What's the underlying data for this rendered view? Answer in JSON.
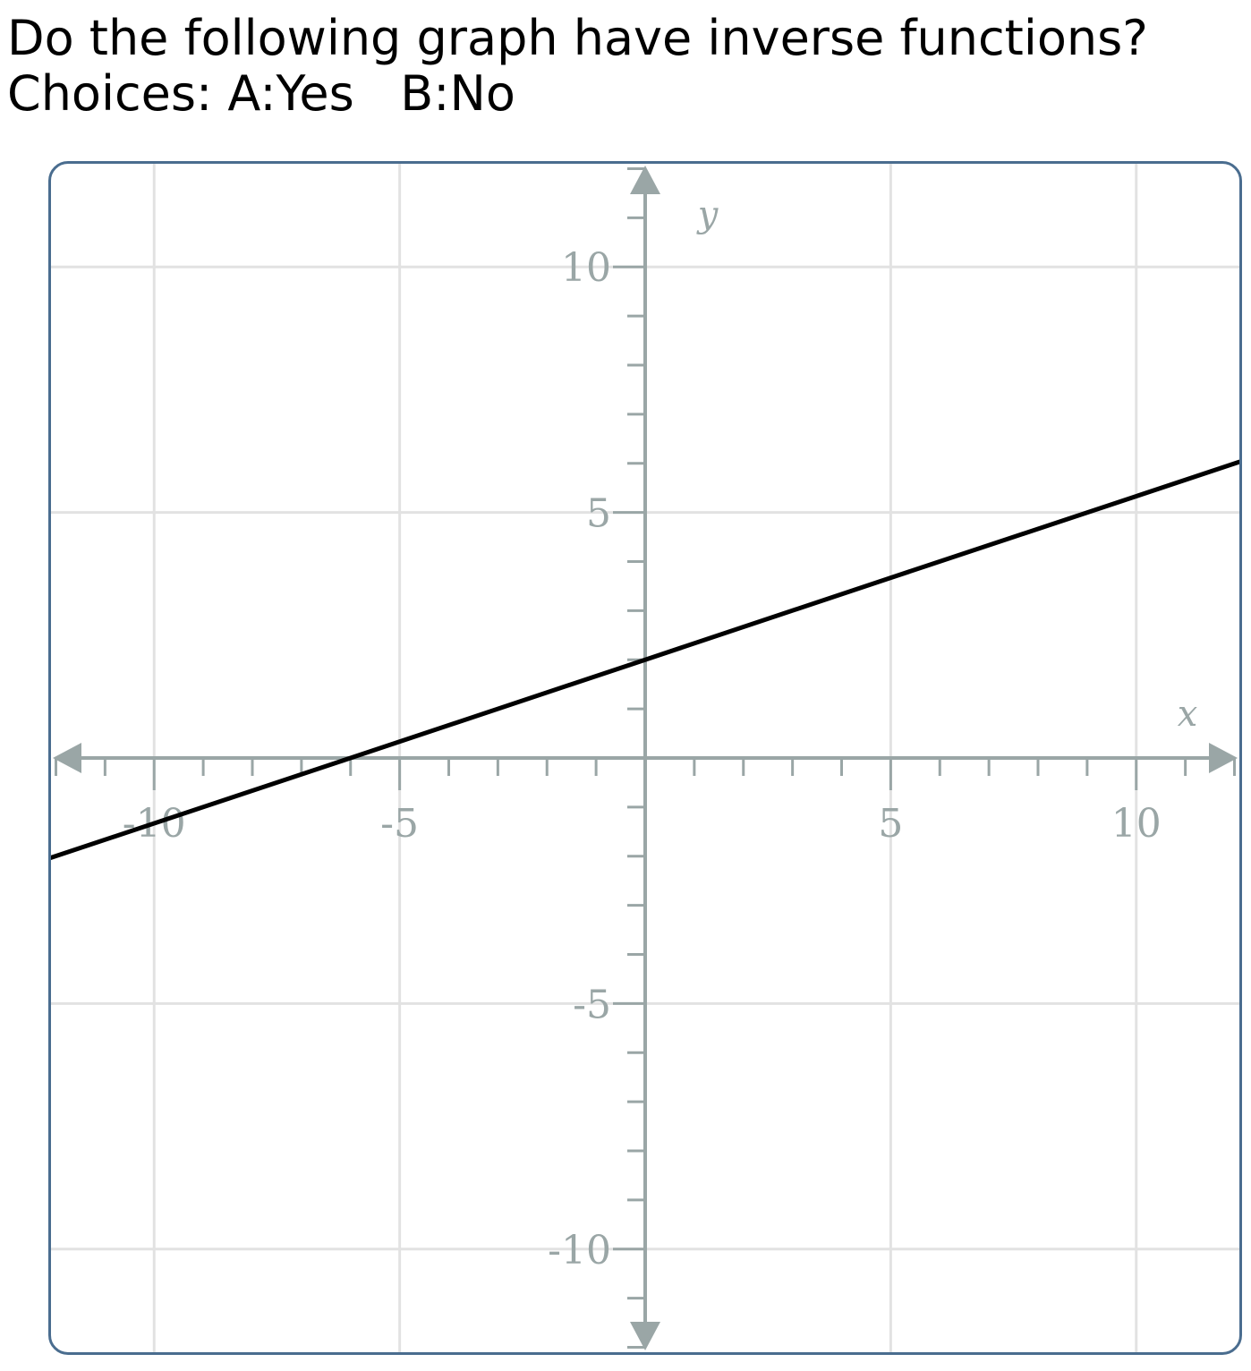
{
  "question": {
    "prompt": "Do the following graph have inverse functions?",
    "choices": "Choices: A:Yes   B:No"
  },
  "colors": {
    "frame": "#4a6d8f",
    "grid": "#e2e2e2",
    "axis": "#9aa6a6",
    "line": "#000000"
  },
  "chart_data": {
    "type": "line",
    "title": "",
    "xlabel": "x",
    "ylabel": "y",
    "xlim": [
      -12.1,
      12.1
    ],
    "ylim": [
      -12.1,
      12.1
    ],
    "grid": true,
    "x_major_ticks": [
      -10,
      -5,
      5,
      10
    ],
    "y_major_ticks": [
      -10,
      -5,
      5,
      10
    ],
    "x_tick_labels": [
      "-10",
      "-5",
      "5",
      "10"
    ],
    "y_tick_labels": [
      "-10",
      "-5",
      "5",
      "10"
    ],
    "minor_tick_step": 1,
    "series": [
      {
        "x": [
          -12.1,
          -6,
          0,
          5,
          10,
          12.1
        ],
        "y": [
          -2.03,
          0,
          2,
          3.67,
          5.33,
          6.03
        ]
      }
    ]
  }
}
